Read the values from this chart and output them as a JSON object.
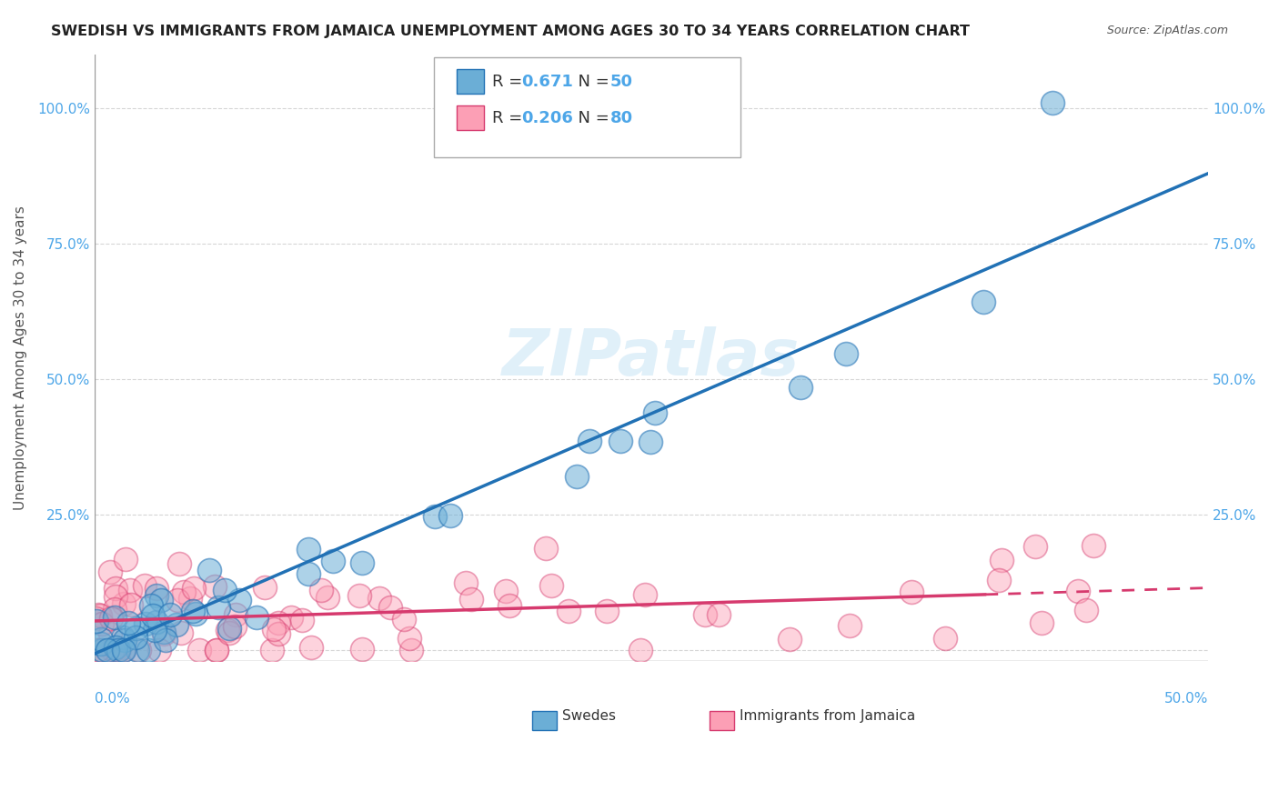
{
  "title": "SWEDISH VS IMMIGRANTS FROM JAMAICA UNEMPLOYMENT AMONG AGES 30 TO 34 YEARS CORRELATION CHART",
  "source": "Source: ZipAtlas.com",
  "ylabel": "Unemployment Among Ages 30 to 34 years",
  "legend_bottom": [
    "Swedes",
    "Immigrants from Jamaica"
  ],
  "series1_label_r": "0.671",
  "series1_label_n": "50",
  "series2_label_r": "0.206",
  "series2_label_n": "80",
  "series1_color": "#6baed6",
  "series2_color": "#fc9fb5",
  "trend1_color": "#2171b5",
  "trend2_color": "#d63a6e",
  "background_color": "#ffffff",
  "xlim": [
    0.0,
    0.5
  ],
  "ylim": [
    -0.02,
    1.1
  ],
  "yticks": [
    0.0,
    0.25,
    0.5,
    0.75,
    1.0
  ],
  "ytick_labels": [
    "",
    "25.0%",
    "50.0%",
    "75.0%",
    "100.0%"
  ]
}
